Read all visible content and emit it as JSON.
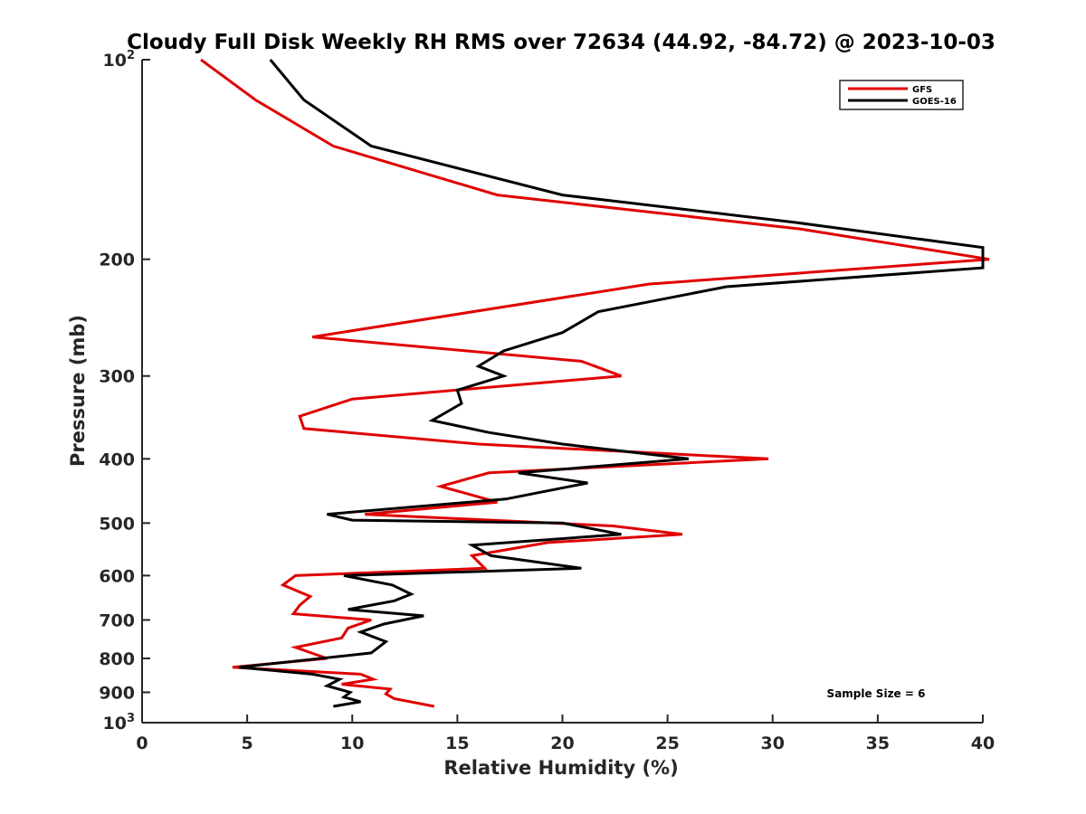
{
  "chart_data": {
    "type": "line",
    "title": "Cloudy Full Disk Weekly RH RMS over 72634 (44.92, -84.72) @ 2023-10-03",
    "xlabel": "Relative Humidity (%)",
    "ylabel": "Pressure (mb)",
    "xlim": [
      0,
      40
    ],
    "ylim": [
      100,
      1000
    ],
    "y_scale": "log",
    "y_reversed": true,
    "grid": false,
    "legend": "top-right",
    "annotation": "Sample Size = 6",
    "x_ticks": [
      "0",
      "5",
      "10",
      "15",
      "20",
      "25",
      "30",
      "35",
      "40"
    ],
    "y_ticks": [
      {
        "value": 100,
        "label": "10",
        "exp": "2"
      },
      {
        "value": 200,
        "label": "200"
      },
      {
        "value": 300,
        "label": "300"
      },
      {
        "value": 400,
        "label": "400"
      },
      {
        "value": 500,
        "label": "500"
      },
      {
        "value": 600,
        "label": "600"
      },
      {
        "value": 700,
        "label": "700"
      },
      {
        "value": 800,
        "label": "800"
      },
      {
        "value": 900,
        "label": "900"
      },
      {
        "value": 1000,
        "label": "10",
        "exp": "3"
      }
    ],
    "series": [
      {
        "name": "GFS",
        "color": "#e00000",
        "points": [
          [
            2.8,
            100
          ],
          [
            5.4,
            115
          ],
          [
            9.1,
            135
          ],
          [
            16.9,
            160
          ],
          [
            31.3,
            180
          ],
          [
            40.3,
            200
          ],
          [
            24.1,
            218
          ],
          [
            8.1,
            262
          ],
          [
            20.9,
            285
          ],
          [
            22.8,
            300
          ],
          [
            10.0,
            325
          ],
          [
            7.5,
            345
          ],
          [
            7.7,
            360
          ],
          [
            16.0,
            380
          ],
          [
            29.8,
            400
          ],
          [
            16.5,
            420
          ],
          [
            14.2,
            440
          ],
          [
            16.9,
            465
          ],
          [
            10.6,
            485
          ],
          [
            22.4,
            505
          ],
          [
            25.7,
            520
          ],
          [
            19.3,
            535
          ],
          [
            15.7,
            560
          ],
          [
            16.3,
            585
          ],
          [
            7.3,
            600
          ],
          [
            6.7,
            620
          ],
          [
            8.0,
            645
          ],
          [
            7.5,
            665
          ],
          [
            7.2,
            685
          ],
          [
            10.9,
            700
          ],
          [
            9.8,
            720
          ],
          [
            9.5,
            745
          ],
          [
            7.3,
            770
          ],
          [
            8.8,
            800
          ],
          [
            4.3,
            825
          ],
          [
            10.4,
            845
          ],
          [
            11.0,
            860
          ],
          [
            9.5,
            875
          ],
          [
            11.8,
            890
          ],
          [
            11.6,
            905
          ],
          [
            12.0,
            920
          ],
          [
            13.9,
            945
          ]
        ]
      },
      {
        "name": "GOES-16",
        "color": "#000000",
        "points": [
          [
            6.1,
            100
          ],
          [
            7.7,
            115
          ],
          [
            10.9,
            135
          ],
          [
            20.0,
            160
          ],
          [
            31.1,
            176
          ],
          [
            40.0,
            192
          ],
          [
            40.0,
            206
          ],
          [
            27.8,
            220
          ],
          [
            21.7,
            240
          ],
          [
            20.0,
            258
          ],
          [
            17.2,
            275
          ],
          [
            16.0,
            290
          ],
          [
            17.2,
            300
          ],
          [
            15.0,
            315
          ],
          [
            15.2,
            330
          ],
          [
            13.8,
            350
          ],
          [
            16.5,
            365
          ],
          [
            20.0,
            380
          ],
          [
            26.0,
            400
          ],
          [
            17.9,
            420
          ],
          [
            21.2,
            435
          ],
          [
            17.3,
            460
          ],
          [
            8.8,
            485
          ],
          [
            10.0,
            495
          ],
          [
            20.0,
            500
          ],
          [
            22.8,
            520
          ],
          [
            15.7,
            540
          ],
          [
            16.6,
            560
          ],
          [
            20.9,
            585
          ],
          [
            9.6,
            600
          ],
          [
            11.9,
            620
          ],
          [
            12.8,
            640
          ],
          [
            12.0,
            655
          ],
          [
            9.8,
            675
          ],
          [
            13.4,
            690
          ],
          [
            11.5,
            710
          ],
          [
            10.4,
            730
          ],
          [
            11.6,
            755
          ],
          [
            10.9,
            785
          ],
          [
            4.6,
            825
          ],
          [
            8.1,
            845
          ],
          [
            9.4,
            860
          ],
          [
            8.8,
            880
          ],
          [
            9.9,
            900
          ],
          [
            9.6,
            915
          ],
          [
            10.4,
            930
          ],
          [
            9.1,
            945
          ]
        ]
      }
    ]
  }
}
